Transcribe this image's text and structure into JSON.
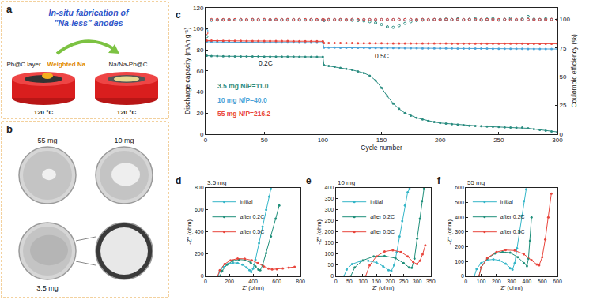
{
  "figure": {
    "panel_labels": [
      "a",
      "b",
      "c",
      "d",
      "e",
      "f"
    ],
    "schematic": {
      "title_lines": [
        "In-situ fabrication of",
        "\"Na-less\" anodes"
      ],
      "substrate_label": "Pb@C layer",
      "sodium_label": "Weighted Na",
      "product_label": "Na/Na-Pb@C",
      "temperature": "120 °C"
    },
    "photos": {
      "samples": [
        "55 mg",
        "10 mg",
        "3.5 mg"
      ]
    }
  },
  "chart_data": [
    {
      "type": "scatter",
      "xlabel": "Cycle number",
      "ylabel": "Discharge capacity (mAh g⁻¹)",
      "y2label": "Coulombic efficiency (%)",
      "annotations": [
        "0.2C",
        "0.5C"
      ],
      "grid": false,
      "xlim": [
        0,
        300
      ],
      "xticks": [
        0,
        50,
        100,
        150,
        200,
        250,
        300
      ],
      "ylim": [
        0,
        120
      ],
      "yticks": [
        0,
        20,
        40,
        60,
        80,
        100,
        120
      ],
      "y2lim": [
        0,
        110
      ],
      "y2ticks": [
        0,
        25,
        50,
        75,
        100
      ],
      "x": [
        1,
        5,
        10,
        15,
        20,
        25,
        30,
        35,
        40,
        45,
        50,
        55,
        60,
        65,
        70,
        75,
        80,
        85,
        90,
        95,
        100,
        101,
        105,
        110,
        115,
        120,
        125,
        130,
        135,
        140,
        145,
        150,
        155,
        160,
        165,
        170,
        175,
        180,
        185,
        190,
        195,
        200,
        205,
        210,
        215,
        220,
        225,
        230,
        235,
        240,
        245,
        250,
        255,
        260,
        265,
        270,
        275,
        280,
        285,
        290,
        295,
        300
      ],
      "series": [
        {
          "name": "3.5 mg N/P=11.0",
          "color": "#2a8c80",
          "marker": "circle",
          "line_style": "solid",
          "values": [
            74.5,
            74.2,
            74.1,
            74.0,
            74.0,
            73.9,
            73.9,
            73.8,
            73.8,
            73.8,
            73.7,
            73.7,
            73.7,
            73.6,
            73.6,
            73.6,
            73.5,
            73.5,
            73.5,
            73.4,
            73.4,
            65.5,
            64.8,
            64.0,
            63.0,
            62.0,
            61.0,
            59.5,
            58.0,
            55.5,
            51.0,
            44.0,
            36.0,
            29.0,
            24.0,
            20.0,
            17.5,
            15.5,
            14.0,
            12.5,
            11.5,
            10.5,
            10.0,
            9.5,
            9.0,
            8.5,
            8.0,
            7.8,
            7.5,
            7.2,
            7.0,
            6.8,
            6.5,
            6.2,
            6.0,
            6.2,
            5.5,
            4.8,
            4.0,
            3.2,
            2.5,
            2.0
          ]
        },
        {
          "name": "10 mg N/P=40.0",
          "color": "#4aa3d8",
          "marker": "circle",
          "line_style": "solid",
          "values": [
            87.8,
            87.6,
            87.5,
            87.5,
            87.4,
            87.4,
            87.4,
            87.3,
            87.3,
            87.3,
            87.2,
            87.2,
            87.2,
            87.1,
            87.1,
            87.1,
            87.0,
            87.0,
            87.0,
            87.0,
            86.9,
            82.3,
            82.2,
            82.2,
            82.1,
            82.1,
            82.0,
            82.0,
            82.0,
            81.9,
            81.9,
            81.9,
            81.8,
            81.8,
            81.8,
            81.7,
            81.7,
            81.7,
            81.6,
            81.6,
            81.6,
            81.5,
            81.5,
            81.5,
            81.4,
            81.4,
            81.4,
            81.3,
            81.3,
            81.3,
            81.2,
            81.2,
            81.2,
            81.1,
            81.1,
            81.1,
            81.0,
            81.0,
            81.0,
            80.9,
            80.9,
            80.9
          ]
        },
        {
          "name": "55 mg N/P=216.2",
          "color": "#e8453c",
          "marker": "circle",
          "line_style": "solid",
          "values": [
            88.9,
            88.8,
            88.7,
            88.7,
            88.6,
            88.6,
            88.6,
            88.5,
            88.5,
            88.5,
            88.5,
            88.4,
            88.4,
            88.4,
            88.4,
            88.3,
            88.3,
            88.3,
            88.3,
            88.2,
            88.2,
            86.6,
            86.6,
            86.5,
            86.5,
            86.5,
            86.5,
            86.4,
            86.4,
            86.4,
            86.4,
            86.4,
            86.3,
            86.3,
            86.3,
            86.3,
            86.3,
            86.2,
            86.2,
            86.2,
            86.2,
            86.2,
            86.2,
            86.1,
            86.1,
            86.1,
            86.1,
            86.1,
            86.1,
            86.0,
            86.0,
            86.0,
            86.0,
            86.0,
            86.0,
            86.0,
            85.9,
            85.9,
            85.9,
            85.9,
            85.9,
            85.9
          ]
        },
        {
          "color": "#2a8c80",
          "marker": "circle-open",
          "line_style": "none",
          "axis": "y2",
          "values": [
            85.0,
            99.2,
            99.4,
            99.5,
            99.5,
            99.6,
            99.5,
            99.6,
            99.5,
            99.6,
            99.6,
            99.5,
            99.6,
            99.6,
            99.5,
            99.6,
            99.6,
            99.5,
            99.6,
            99.6,
            99.5,
            99.0,
            99.5,
            99.6,
            99.5,
            99.4,
            99.2,
            99.0,
            98.6,
            98.0,
            97.0,
            95.5,
            93.5,
            93.0,
            94.5,
            96.5,
            98.0,
            99.0,
            99.4,
            99.6,
            99.8,
            100.0,
            100.2,
            99.8,
            100.4,
            99.6,
            100.0,
            100.6,
            99.5,
            100.2,
            100.8,
            99.4,
            100.0,
            101.0,
            99.6,
            100.4,
            102.5,
            100.2,
            99.8,
            100.6,
            100.0,
            99.4
          ]
        },
        {
          "color": "#4aa3d8",
          "marker": "circle-open",
          "line_style": "none",
          "axis": "y2",
          "values": [
            90.0,
            99.4,
            99.6,
            99.6,
            99.7,
            99.6,
            99.7,
            99.6,
            99.7,
            99.7,
            99.6,
            99.7,
            99.7,
            99.6,
            99.7,
            99.7,
            99.6,
            99.7,
            99.7,
            99.7,
            99.7,
            99.2,
            99.7,
            99.8,
            99.7,
            99.8,
            99.8,
            99.7,
            99.8,
            99.8,
            99.7,
            99.8,
            99.8,
            99.7,
            99.8,
            99.8,
            99.7,
            99.8,
            99.8,
            99.7,
            99.8,
            99.8,
            99.7,
            99.8,
            99.8,
            99.7,
            99.8,
            99.8,
            99.7,
            99.8,
            99.8,
            99.7,
            99.8,
            99.8,
            99.7,
            99.8,
            99.8,
            99.7,
            99.8,
            99.8,
            99.7,
            99.8
          ]
        },
        {
          "color": "#e8453c",
          "marker": "circle-open",
          "line_style": "none",
          "axis": "y2",
          "values": [
            88.0,
            99.8,
            99.9,
            99.8,
            99.9,
            99.8,
            99.9,
            99.8,
            99.9,
            99.8,
            99.9,
            99.8,
            99.9,
            99.8,
            99.9,
            99.8,
            99.9,
            99.8,
            99.9,
            99.8,
            99.9,
            99.4,
            99.9,
            99.8,
            99.9,
            99.8,
            99.9,
            99.8,
            99.9,
            99.8,
            99.9,
            99.8,
            99.9,
            99.8,
            99.9,
            99.8,
            99.9,
            99.8,
            99.9,
            99.8,
            99.9,
            99.8,
            99.9,
            99.8,
            99.9,
            99.8,
            99.9,
            99.8,
            99.9,
            99.8,
            99.9,
            99.8,
            99.9,
            99.8,
            99.9,
            99.8,
            99.9,
            99.8,
            99.9,
            99.8,
            99.9,
            99.8
          ]
        }
      ]
    },
    {
      "type": "scatter",
      "title": "3.5 mg",
      "xlabel": "Z' (ohm)",
      "ylabel": "-Z'' (ohm)",
      "grid": false,
      "legend": "upper left",
      "xlim": [
        0,
        800
      ],
      "xticks": [
        0,
        200,
        400,
        600,
        800
      ],
      "ylim": [
        0,
        800
      ],
      "yticks": [
        0,
        200,
        400,
        600,
        800
      ],
      "series": [
        {
          "name": "initial",
          "color": "#35b6c8",
          "marker": "circle",
          "line_style": "solid",
          "x": [
            105,
            120,
            150,
            190,
            230,
            270,
            310,
            345,
            370,
            385,
            400,
            420,
            450,
            480,
            510,
            535,
            550
          ],
          "values": [
            0,
            45,
            85,
            112,
            122,
            120,
            105,
            80,
            55,
            40,
            70,
            150,
            300,
            450,
            600,
            720,
            790
          ]
        },
        {
          "name": "after 0.2C",
          "color": "#1f8f7a",
          "marker": "circle",
          "line_style": "solid",
          "x": [
            120,
            140,
            180,
            230,
            280,
            330,
            380,
            420,
            445,
            460,
            480,
            510,
            550,
            590,
            620
          ],
          "values": [
            0,
            50,
            105,
            140,
            152,
            148,
            125,
            90,
            60,
            55,
            100,
            210,
            360,
            520,
            640
          ]
        },
        {
          "name": "after 0.5C",
          "color": "#e8453c",
          "marker": "circle",
          "line_style": "solid",
          "x": [
            100,
            120,
            160,
            210,
            270,
            330,
            390,
            440,
            490,
            530,
            560,
            600,
            650,
            700,
            750
          ],
          "values": [
            0,
            55,
            110,
            145,
            160,
            158,
            145,
            120,
            90,
            70,
            62,
            65,
            72,
            78,
            85
          ]
        }
      ]
    },
    {
      "type": "scatter",
      "title": "10 mg",
      "xlabel": "Z' (ohm)",
      "ylabel": "-Z'' (ohm)",
      "grid": false,
      "legend": "upper left",
      "xlim": [
        0,
        350
      ],
      "xticks": [
        0,
        50,
        100,
        150,
        200,
        250,
        300,
        350
      ],
      "ylim": [
        0,
        400
      ],
      "yticks": [
        0,
        50,
        100,
        150,
        200,
        250,
        300,
        350,
        400
      ],
      "series": [
        {
          "name": "initial",
          "color": "#35b6c8",
          "marker": "circle",
          "line_style": "solid",
          "x": [
            30,
            40,
            60,
            90,
            120,
            150,
            175,
            195,
            205,
            215,
            225,
            235,
            245,
            255,
            265,
            272
          ],
          "values": [
            0,
            30,
            55,
            68,
            70,
            62,
            45,
            28,
            25,
            50,
            110,
            180,
            250,
            320,
            380,
            395
          ]
        },
        {
          "name": "after 0.2C",
          "color": "#1f8f7a",
          "marker": "circle",
          "line_style": "solid",
          "x": [
            55,
            70,
            100,
            140,
            180,
            220,
            250,
            270,
            280,
            290,
            300,
            310,
            318,
            325
          ],
          "values": [
            0,
            40,
            72,
            90,
            92,
            82,
            60,
            40,
            38,
            80,
            170,
            260,
            340,
            395
          ]
        },
        {
          "name": "after 0.5C",
          "color": "#e8453c",
          "marker": "circle",
          "line_style": "solid",
          "x": [
            110,
            125,
            150,
            180,
            210,
            240,
            265,
            285,
            300,
            310,
            320,
            330
          ],
          "values": [
            0,
            50,
            90,
            112,
            118,
            110,
            90,
            65,
            55,
            70,
            100,
            140
          ]
        }
      ]
    },
    {
      "type": "scatter",
      "title": "55 mg",
      "xlabel": "Z' (ohm)",
      "ylabel": "-Z'' (ohm)",
      "grid": false,
      "legend": "upper left",
      "xlim": [
        0,
        600
      ],
      "xticks": [
        0,
        100,
        200,
        300,
        400,
        500,
        600
      ],
      "ylim": [
        0,
        600
      ],
      "yticks": [
        0,
        100,
        200,
        300,
        400,
        500,
        600
      ],
      "series": [
        {
          "name": "initial",
          "color": "#35b6c8",
          "marker": "circle",
          "line_style": "solid",
          "x": [
            55,
            70,
            100,
            140,
            180,
            220,
            260,
            290,
            305,
            320,
            335,
            350,
            365,
            380,
            395
          ],
          "values": [
            0,
            50,
            90,
            110,
            115,
            108,
            85,
            55,
            45,
            90,
            190,
            300,
            410,
            510,
            590
          ]
        },
        {
          "name": "after 0.2C",
          "color": "#1f8f7a",
          "marker": "circle",
          "line_style": "solid",
          "x": [
            85,
            100,
            140,
            190,
            240,
            290,
            340,
            380,
            400,
            410,
            420,
            430
          ],
          "values": [
            0,
            60,
            120,
            155,
            165,
            160,
            130,
            90,
            70,
            120,
            240,
            400
          ]
        },
        {
          "name": "after 0.5C",
          "color": "#e8453c",
          "marker": "circle",
          "line_style": "solid",
          "x": [
            85,
            100,
            140,
            200,
            260,
            320,
            380,
            430,
            465,
            480,
            500,
            520,
            540,
            560
          ],
          "values": [
            0,
            60,
            125,
            165,
            178,
            175,
            150,
            110,
            80,
            75,
            130,
            250,
            400,
            560
          ]
        }
      ]
    }
  ]
}
